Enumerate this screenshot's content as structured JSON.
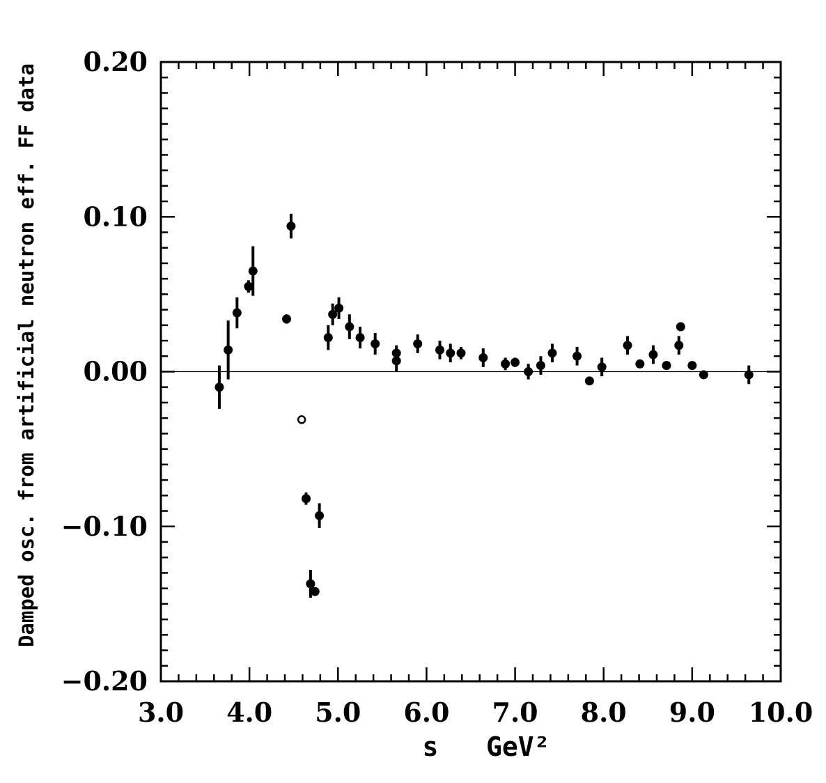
{
  "chart_data": {
    "type": "scatter",
    "title": "",
    "xlabel": "s   GeV²",
    "ylabel": "Damped osc. from artificial neutron eff. FF data",
    "xlim": [
      3.0,
      10.0
    ],
    "ylim": [
      -0.2,
      0.2
    ],
    "x_ticks": [
      "3.0",
      "4.0",
      "5.0",
      "6.0",
      "7.0",
      "8.0",
      "9.0",
      "10.0"
    ],
    "y_ticks": [
      "0.20",
      "0.10",
      "0.00",
      "−0.10",
      "−0.20"
    ],
    "zero_line": true,
    "grid": false,
    "legend": "none",
    "marker_color": "#000000",
    "series": [
      {
        "points": [
          {
            "x": 3.66,
            "y": -0.01,
            "err": 0.014
          },
          {
            "x": 3.76,
            "y": 0.014,
            "err": 0.019
          },
          {
            "x": 3.86,
            "y": 0.038,
            "err": 0.01
          },
          {
            "x": 3.99,
            "y": 0.055,
            "err": 0.004
          },
          {
            "x": 4.04,
            "y": 0.065,
            "err": 0.016
          },
          {
            "x": 4.42,
            "y": 0.034,
            "err": 0.003
          },
          {
            "x": 4.47,
            "y": 0.094,
            "err": 0.008
          },
          {
            "x": 4.59,
            "y": -0.031,
            "err": 0.001,
            "open": true
          },
          {
            "x": 4.64,
            "y": -0.082,
            "err": 0.004
          },
          {
            "x": 4.69,
            "y": -0.137,
            "err": 0.009
          },
          {
            "x": 4.74,
            "y": -0.142,
            "err": 0.002
          },
          {
            "x": 4.79,
            "y": -0.093,
            "err": 0.008
          },
          {
            "x": 4.89,
            "y": 0.022,
            "err": 0.008
          },
          {
            "x": 4.94,
            "y": 0.037,
            "err": 0.007
          },
          {
            "x": 5.01,
            "y": 0.041,
            "err": 0.007
          },
          {
            "x": 5.13,
            "y": 0.029,
            "err": 0.008
          },
          {
            "x": 5.25,
            "y": 0.022,
            "err": 0.007
          },
          {
            "x": 5.42,
            "y": 0.018,
            "err": 0.007
          },
          {
            "x": 5.66,
            "y": 0.012,
            "err": 0.005
          },
          {
            "x": 5.66,
            "y": 0.007,
            "err": 0.007
          },
          {
            "x": 5.9,
            "y": 0.018,
            "err": 0.006
          },
          {
            "x": 6.15,
            "y": 0.014,
            "err": 0.006
          },
          {
            "x": 6.27,
            "y": 0.012,
            "err": 0.006
          },
          {
            "x": 6.39,
            "y": 0.012,
            "err": 0.004
          },
          {
            "x": 6.64,
            "y": 0.009,
            "err": 0.006
          },
          {
            "x": 6.89,
            "y": 0.005,
            "err": 0.004
          },
          {
            "x": 7.0,
            "y": 0.006,
            "err": 0.003
          },
          {
            "x": 7.15,
            "y": 0.0,
            "err": 0.005
          },
          {
            "x": 7.29,
            "y": 0.004,
            "err": 0.006
          },
          {
            "x": 7.42,
            "y": 0.012,
            "err": 0.006
          },
          {
            "x": 7.7,
            "y": 0.01,
            "err": 0.006
          },
          {
            "x": 7.84,
            "y": -0.006,
            "err": 0.002
          },
          {
            "x": 7.98,
            "y": 0.003,
            "err": 0.006
          },
          {
            "x": 8.27,
            "y": 0.017,
            "err": 0.006
          },
          {
            "x": 8.41,
            "y": 0.005,
            "err": 0.002
          },
          {
            "x": 8.56,
            "y": 0.011,
            "err": 0.006
          },
          {
            "x": 8.71,
            "y": 0.004,
            "err": 0.002
          },
          {
            "x": 8.85,
            "y": 0.017,
            "err": 0.006
          },
          {
            "x": 8.87,
            "y": 0.029,
            "err": 0.002
          },
          {
            "x": 9.0,
            "y": 0.004,
            "err": 0.002
          },
          {
            "x": 9.13,
            "y": -0.002,
            "err": 0.002
          },
          {
            "x": 9.64,
            "y": -0.002,
            "err": 0.006
          }
        ]
      }
    ]
  }
}
